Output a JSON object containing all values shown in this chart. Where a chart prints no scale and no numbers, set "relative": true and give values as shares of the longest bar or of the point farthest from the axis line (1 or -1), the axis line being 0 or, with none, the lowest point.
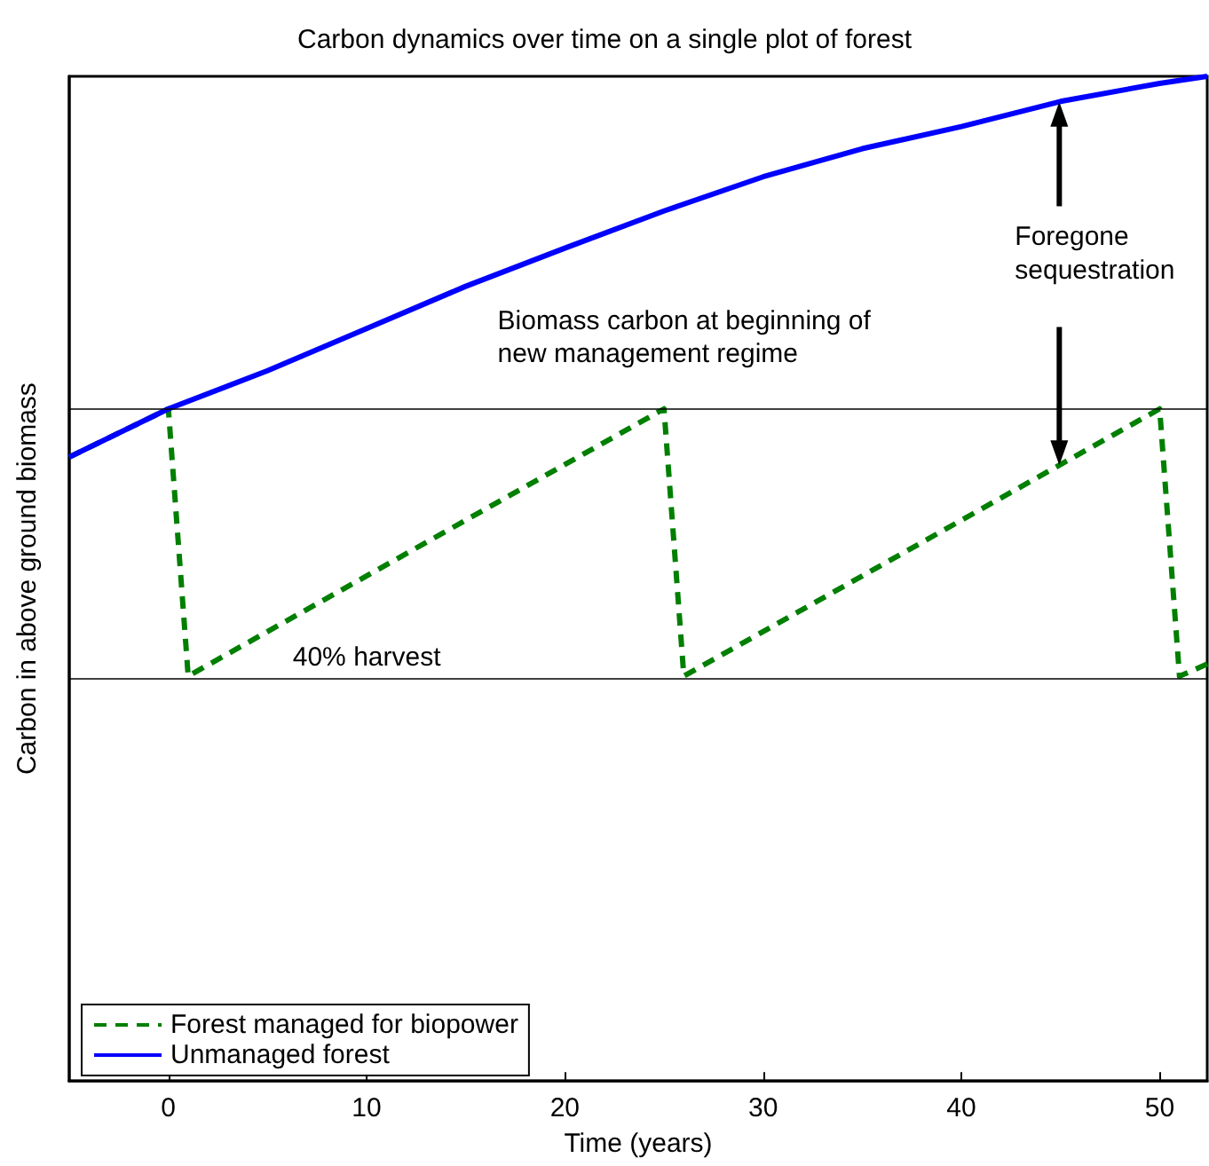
{
  "chart_data": {
    "type": "line",
    "title": "Carbon dynamics over time on a single plot of forest",
    "xlabel": "Time (years)",
    "ylabel": "Carbon in above ground biomass",
    "relative": true,
    "xlim": [
      -5,
      52.4
    ],
    "xticks": [
      0,
      10,
      20,
      30,
      40,
      50
    ],
    "tick_labels": "x",
    "grid": false,
    "legend": "bottom left",
    "marker": "none",
    "series": [
      {
        "name": "Forest managed for biopower",
        "color": "#007f00",
        "line_style": "dashed",
        "x": [
          -5,
          0,
          1,
          25,
          26,
          50,
          51,
          52.4
        ],
        "values": [
          0.621,
          0.669,
          0.403,
          0.669,
          0.403,
          0.669,
          0.403,
          0.415
        ]
      },
      {
        "name": "Unmanaged forest",
        "color": "#0000ff",
        "line_style": "solid",
        "x": [
          -5,
          0,
          5,
          10,
          15,
          20,
          25,
          30,
          35,
          40,
          45,
          50,
          52.4
        ],
        "values": [
          0.621,
          0.669,
          0.707,
          0.749,
          0.791,
          0.829,
          0.866,
          0.9,
          0.928,
          0.95,
          0.975,
          0.993,
          1
        ]
      }
    ],
    "ref_lines": [
      {
        "axis": "y",
        "value": 0.669,
        "label": "Biomass carbon at beginning of new management regime",
        "color": "#000000"
      },
      {
        "axis": "y",
        "value": 0.403,
        "label": "40% harvest",
        "color": "#000000"
      }
    ],
    "annotations": [
      "Foregone sequestration"
    ]
  }
}
